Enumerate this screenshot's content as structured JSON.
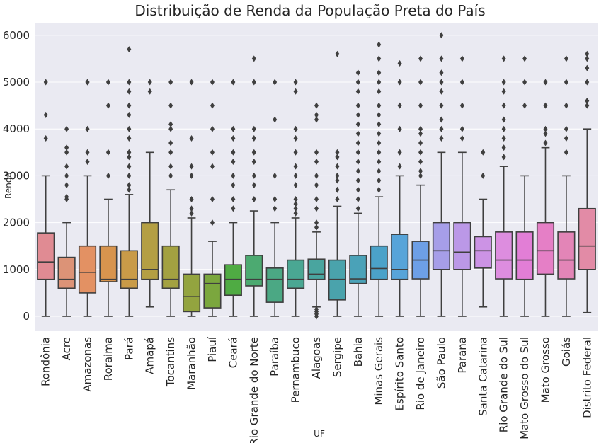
{
  "chart_data": {
    "type": "boxplot",
    "title": "Distribuição de Renda da População Preta do País",
    "xlabel": "UF",
    "ylabel": "Renda",
    "ylim": [
      -300,
      6300
    ],
    "yticks": [
      0,
      1000,
      2000,
      3000,
      4000,
      5000,
      6000
    ],
    "grid": true,
    "legend": "none",
    "categories": [
      {
        "name": "Rondônia",
        "color": "#e08b93",
        "whisker_low": 0,
        "q1": 790,
        "median": 1160,
        "q3": 1780,
        "whisker_high": 3000,
        "outliers": [
          3800,
          4300,
          5000
        ]
      },
      {
        "name": "Acre",
        "color": "#dc9377",
        "whisker_low": 0,
        "q1": 600,
        "median": 790,
        "q3": 1260,
        "whisker_high": 2000,
        "outliers": [
          2500,
          2550,
          2800,
          3000,
          3200,
          3500,
          3600,
          4000
        ]
      },
      {
        "name": "Amazonas",
        "color": "#e39163",
        "whisker_low": 0,
        "q1": 500,
        "median": 940,
        "q3": 1500,
        "whisker_high": 3000,
        "outliers": [
          3300,
          3500,
          4000,
          5000,
          5000
        ]
      },
      {
        "name": "Roraima",
        "color": "#d7944e",
        "whisker_low": 0,
        "q1": 740,
        "median": 790,
        "q3": 1500,
        "whisker_high": 2500,
        "outliers": [
          3000,
          3500,
          4500,
          5000
        ]
      },
      {
        "name": "Pará",
        "color": "#c99b48",
        "whisker_low": 0,
        "q1": 600,
        "median": 790,
        "q3": 1400,
        "whisker_high": 2600,
        "outliers": [
          2700,
          2800,
          3000,
          3200,
          3400,
          3500,
          3800,
          4000,
          4300,
          4500,
          4800,
          5000,
          5700
        ]
      },
      {
        "name": "Amapá",
        "color": "#b49f43",
        "whisker_low": 200,
        "q1": 790,
        "median": 1000,
        "q3": 2000,
        "whisker_high": 3500,
        "outliers": [
          4800,
          5000
        ]
      },
      {
        "name": "Tocantins",
        "color": "#a3a141",
        "whisker_low": 0,
        "q1": 600,
        "median": 790,
        "q3": 1500,
        "whisker_high": 2700,
        "outliers": [
          3000,
          3200,
          3500,
          3700,
          4000,
          4100,
          4500,
          5000
        ]
      },
      {
        "name": "Maranhão",
        "color": "#93a43f",
        "whisker_low": 0,
        "q1": 100,
        "median": 420,
        "q3": 900,
        "whisker_high": 2100,
        "outliers": [
          2200,
          2300,
          2500,
          3000,
          3200,
          3800,
          5000
        ]
      },
      {
        "name": "Piauí",
        "color": "#7ba73e",
        "whisker_low": 0,
        "q1": 180,
        "median": 700,
        "q3": 900,
        "whisker_high": 1600,
        "outliers": [
          2000,
          2500,
          3200,
          3500,
          4000,
          4500,
          5000
        ]
      },
      {
        "name": "Ceará",
        "color": "#4fab43",
        "whisker_low": 0,
        "q1": 450,
        "median": 790,
        "q3": 1100,
        "whisker_high": 2000,
        "outliers": [
          2300,
          2500,
          2800,
          3000,
          3300,
          3500,
          3800,
          4000,
          5000
        ]
      },
      {
        "name": "Rio Grande do Norte",
        "color": "#4caa71",
        "whisker_low": 0,
        "q1": 650,
        "median": 790,
        "q3": 1300,
        "whisker_high": 2250,
        "outliers": [
          2500,
          2800,
          3000,
          3300,
          3500,
          3800,
          4000,
          5000,
          5500
        ]
      },
      {
        "name": "Paraíba",
        "color": "#4ba884",
        "whisker_low": 0,
        "q1": 300,
        "median": 790,
        "q3": 1030,
        "whisker_high": 2000,
        "outliers": [
          2300,
          2500,
          3000,
          4200,
          5000
        ]
      },
      {
        "name": "Pernambuco",
        "color": "#4aa793",
        "whisker_low": 0,
        "q1": 600,
        "median": 790,
        "q3": 1200,
        "whisker_high": 2100,
        "outliers": [
          2200,
          2300,
          2400,
          2500,
          2800,
          3000,
          3200,
          3500,
          3800,
          4000,
          4800,
          5000
        ]
      },
      {
        "name": "Alagoas",
        "color": "#49a59f",
        "whisker_low": 200,
        "q1": 790,
        "median": 900,
        "q3": 1220,
        "whisker_high": 1800,
        "outliers": [
          0,
          50,
          100,
          150,
          1900,
          2000,
          2300,
          2500,
          2800,
          3000,
          3300,
          3500,
          4200,
          4300,
          4500
        ]
      },
      {
        "name": "Sergipe",
        "color": "#4aa3ac",
        "whisker_low": 0,
        "q1": 350,
        "median": 790,
        "q3": 1200,
        "whisker_high": 2350,
        "outliers": [
          2500,
          2700,
          2900,
          3000,
          3200,
          3400,
          3500,
          5600
        ]
      },
      {
        "name": "Bahia",
        "color": "#4aa2b8",
        "whisker_low": 0,
        "q1": 700,
        "median": 800,
        "q3": 1300,
        "whisker_high": 2200,
        "outliers": [
          2300,
          2500,
          2700,
          2900,
          3100,
          3300,
          3500,
          3700,
          3900,
          4100,
          4300,
          4500,
          4800,
          5000,
          5200
        ]
      },
      {
        "name": "Minas Gerais",
        "color": "#4ba2c9",
        "whisker_low": 0,
        "q1": 790,
        "median": 1020,
        "q3": 1500,
        "whisker_high": 2550,
        "outliers": [
          2700,
          2900,
          3100,
          3300,
          3500,
          3700,
          3900,
          4100,
          4300,
          4500,
          4800,
          5000,
          5200,
          5500,
          5800
        ]
      },
      {
        "name": "Espírito Santo",
        "color": "#57a4d9",
        "whisker_low": 0,
        "q1": 790,
        "median": 1000,
        "q3": 1750,
        "whisker_high": 3000,
        "outliers": [
          3200,
          3500,
          4000,
          4500,
          5000,
          5400
        ]
      },
      {
        "name": "Rio de Janeiro",
        "color": "#6d9fe6",
        "whisker_low": 0,
        "q1": 800,
        "median": 1200,
        "q3": 1600,
        "whisker_high": 2800,
        "outliers": [
          3000,
          3100,
          3300,
          3500,
          3700,
          3900,
          4000,
          4500,
          5000,
          5500
        ]
      },
      {
        "name": "São Paulo",
        "color": "#a69ee8",
        "whisker_low": 0,
        "q1": 1000,
        "median": 1400,
        "q3": 2000,
        "whisker_high": 3500,
        "outliers": [
          3800,
          4000,
          4200,
          4500,
          4800,
          5000,
          5200,
          5500,
          6000
        ]
      },
      {
        "name": "Parana",
        "color": "#bb98e7",
        "whisker_low": 0,
        "q1": 1000,
        "median": 1370,
        "q3": 2000,
        "whisker_high": 3500,
        "outliers": [
          3800,
          4000,
          4500,
          5000,
          5500
        ]
      },
      {
        "name": "Santa Catarina",
        "color": "#cc93e5",
        "whisker_low": 200,
        "q1": 1030,
        "median": 1400,
        "q3": 1700,
        "whisker_high": 2500,
        "outliers": [
          3000,
          3500
        ]
      },
      {
        "name": "Rio Grande do Sul",
        "color": "#dd8ddf",
        "whisker_low": 0,
        "q1": 800,
        "median": 1200,
        "q3": 1800,
        "whisker_high": 3200,
        "outliers": [
          3400,
          3600,
          3800,
          4000,
          4200,
          4500,
          4800,
          5000,
          5500
        ]
      },
      {
        "name": "Mato Grosso do Sul",
        "color": "#e27ed6",
        "whisker_low": 0,
        "q1": 790,
        "median": 1200,
        "q3": 1800,
        "whisker_high": 3000,
        "outliers": [
          4500,
          5000,
          5500
        ]
      },
      {
        "name": "Mato Grosso",
        "color": "#e57fc6",
        "whisker_low": 0,
        "q1": 900,
        "median": 1400,
        "q3": 2000,
        "whisker_high": 3600,
        "outliers": [
          3700,
          3900,
          4000,
          4500,
          5000
        ]
      },
      {
        "name": "Goiás",
        "color": "#e385b7",
        "whisker_low": 0,
        "q1": 800,
        "median": 1200,
        "q3": 1800,
        "whisker_high": 3000,
        "outliers": [
          3500,
          3800,
          4000,
          4500,
          5000,
          5500
        ]
      },
      {
        "name": "Distrito Federal",
        "color": "#e28ba6",
        "whisker_low": 80,
        "q1": 1000,
        "median": 1500,
        "q3": 2300,
        "whisker_high": 4000,
        "outliers": [
          4500,
          4600,
          5000,
          5300,
          5500,
          5600
        ]
      }
    ]
  }
}
